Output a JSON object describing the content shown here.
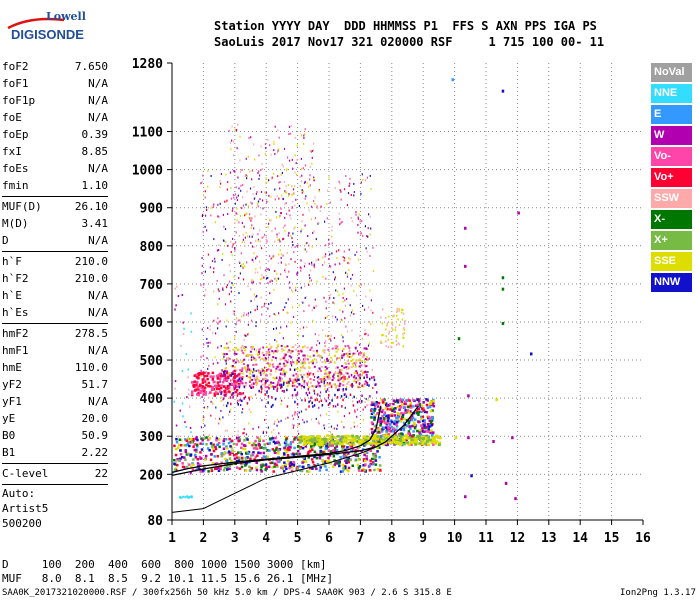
{
  "logo": {
    "line1": "Lowell",
    "line2": "DIGISONDE"
  },
  "header": {
    "line1": "Station YYYY DAY  DDD HHMMSS P1  FFS S AXN PPS IGA PS",
    "line2": "SaoLuis 2017 Nov17 321 020000 RSF     1 715 100 00- 11"
  },
  "params": {
    "group1": [
      {
        "k": "foF2",
        "v": "7.650"
      },
      {
        "k": "foF1",
        "v": "N/A"
      },
      {
        "k": "foF1p",
        "v": "N/A"
      },
      {
        "k": "foE",
        "v": "N/A"
      },
      {
        "k": "foEp",
        "v": "0.39"
      },
      {
        "k": "fxI",
        "v": "8.85"
      },
      {
        "k": "foEs",
        "v": "N/A"
      },
      {
        "k": "fmin",
        "v": "1.10"
      }
    ],
    "group2": [
      {
        "k": "MUF(D)",
        "v": "26.10"
      },
      {
        "k": "M(D)",
        "v": "3.41"
      },
      {
        "k": "D",
        "v": "N/A"
      }
    ],
    "group3": [
      {
        "k": "h`F",
        "v": "210.0"
      },
      {
        "k": "h`F2",
        "v": "210.0"
      },
      {
        "k": "h`E",
        "v": "N/A"
      },
      {
        "k": "h`Es",
        "v": "N/A"
      }
    ],
    "group4": [
      {
        "k": "hmF2",
        "v": "278.5"
      },
      {
        "k": "hmF1",
        "v": "N/A"
      },
      {
        "k": "hmE",
        "v": "110.0"
      },
      {
        "k": "yF2",
        "v": "51.7"
      },
      {
        "k": "yF1",
        "v": "N/A"
      },
      {
        "k": "yE",
        "v": "20.0"
      },
      {
        "k": "B0",
        "v": "50.9"
      },
      {
        "k": "B1",
        "v": "2.22"
      }
    ],
    "group5": [
      {
        "k": "C-level",
        "v": "22"
      }
    ],
    "auto": [
      "Auto:",
      "Artist5",
      "500200"
    ]
  },
  "bottom": {
    "line1": "D     100  200  400  600  800 1000 1500 3000 [km]",
    "line2": "MUF   8.0  8.1  8.5  9.2 10.1 11.5 15.6 26.1 [MHz]"
  },
  "footer": {
    "left": "SAA0K_2017321020000.RSF / 300fx256h 50 kHz 5.0 km / DPS-4 SAA0K 903 / 2.6 S 315.8 E",
    "right": "Ion2Png 1.3.17"
  },
  "legend": [
    {
      "label": "NoVal",
      "color": "#a0a0a0"
    },
    {
      "label": "NNE",
      "color": "#33ddff"
    },
    {
      "label": "E",
      "color": "#3399ff"
    },
    {
      "label": "W",
      "color": "#b000b0"
    },
    {
      "label": "Vo-",
      "color": "#ff44aa"
    },
    {
      "label": "Vo+",
      "color": "#ff0033"
    },
    {
      "label": "SSW",
      "color": "#ffaaaa"
    },
    {
      "label": "X-",
      "color": "#007700"
    },
    {
      "label": "X+",
      "color": "#77bb44"
    },
    {
      "label": "SSE",
      "color": "#dddd00"
    },
    {
      "label": "NNW",
      "color": "#1111cc"
    }
  ],
  "chart_data": {
    "type": "scatter",
    "x_ticks": [
      1,
      2,
      3,
      4,
      5,
      6,
      7,
      8,
      9,
      10,
      11,
      12,
      13,
      14,
      15,
      16
    ],
    "y_ticks": [
      80,
      200,
      300,
      400,
      500,
      600,
      700,
      800,
      900,
      1000,
      1100,
      1280
    ],
    "xlim": [
      1,
      16
    ],
    "ylim": [
      80,
      1280
    ],
    "grid": true,
    "curves": {
      "trace_O": {
        "x": [
          1.0,
          1.5,
          2.0,
          3.0,
          4.0,
          5.0,
          6.0,
          6.5,
          7.0,
          7.3,
          7.5,
          7.65
        ],
        "y": [
          205,
          215,
          222,
          232,
          240,
          247,
          255,
          262,
          275,
          290,
          320,
          380
        ]
      },
      "trace_X": {
        "x": [
          1.0,
          2.0,
          3.0,
          4.0,
          5.0,
          6.0,
          7.0,
          7.5,
          7.8,
          8.0,
          8.4,
          8.85
        ],
        "y": [
          197,
          214,
          228,
          238,
          245,
          252,
          262,
          272,
          285,
          300,
          330,
          380
        ]
      },
      "profile": {
        "x": [
          1.0,
          2.0,
          3.0,
          4.0,
          5.0,
          6.0,
          7.0,
          7.3,
          7.5,
          7.6,
          7.65
        ],
        "y": [
          100,
          110,
          150,
          190,
          210,
          230,
          255,
          265,
          272,
          277,
          278.5
        ]
      }
    }
  }
}
